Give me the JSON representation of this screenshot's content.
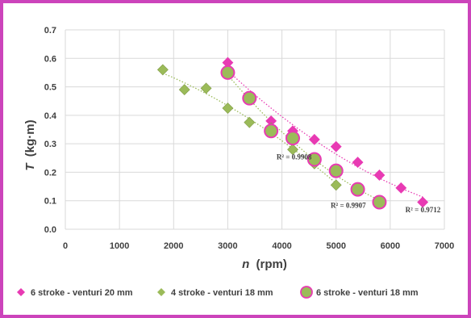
{
  "colors": {
    "frame": "#cc44bb",
    "magenta": "#e83ab3",
    "green": "#9bbb59",
    "grid": "#d9d9d9",
    "text": "#404040"
  },
  "chart_data": {
    "type": "scatter",
    "xlabel_italic": "n",
    "xlabel_unit": "(rpm)",
    "ylabel_italic": "T",
    "ylabel_unit": "(kg·m)",
    "xlim": [
      0,
      7000
    ],
    "ylim": [
      0,
      0.7
    ],
    "x_ticks": [
      "0",
      "1000",
      "2000",
      "3000",
      "4000",
      "5000",
      "6000",
      "7000"
    ],
    "y_ticks": [
      "0.0",
      "0.1",
      "0.2",
      "0.3",
      "0.4",
      "0.5",
      "0.6",
      "0.7"
    ],
    "grid": true,
    "legend_position": "bottom",
    "series": [
      {
        "name": "6 stroke - venturi 20 mm",
        "marker": "diamond",
        "color": "#e83ab3",
        "trendline": "dotted",
        "r2": "R² = 0.9712",
        "x": [
          3000,
          3800,
          4200,
          4600,
          5000,
          5400,
          5800,
          6200,
          6600
        ],
        "y": [
          0.585,
          0.38,
          0.345,
          0.315,
          0.29,
          0.235,
          0.19,
          0.145,
          0.095
        ]
      },
      {
        "name": "4 stroke - venturi 18 mm",
        "marker": "diamond",
        "color": "#9bbb59",
        "trendline": "dotted",
        "r2": "R² = 0.9908",
        "x": [
          1800,
          2200,
          2600,
          3000,
          3400,
          3800,
          4200,
          4600,
          5000
        ],
        "y": [
          0.56,
          0.49,
          0.495,
          0.425,
          0.375,
          0.355,
          0.28,
          0.23,
          0.155
        ]
      },
      {
        "name": "6 stroke - venturi 18 mm",
        "marker": "circle",
        "color": "#9bbb59",
        "trendline": "dotted",
        "r2": "R² = 0.9907",
        "x": [
          3000,
          3400,
          3800,
          4200,
          4600,
          5000,
          5400,
          5800
        ],
        "y": [
          0.55,
          0.46,
          0.345,
          0.32,
          0.245,
          0.205,
          0.14,
          0.095
        ]
      }
    ]
  }
}
